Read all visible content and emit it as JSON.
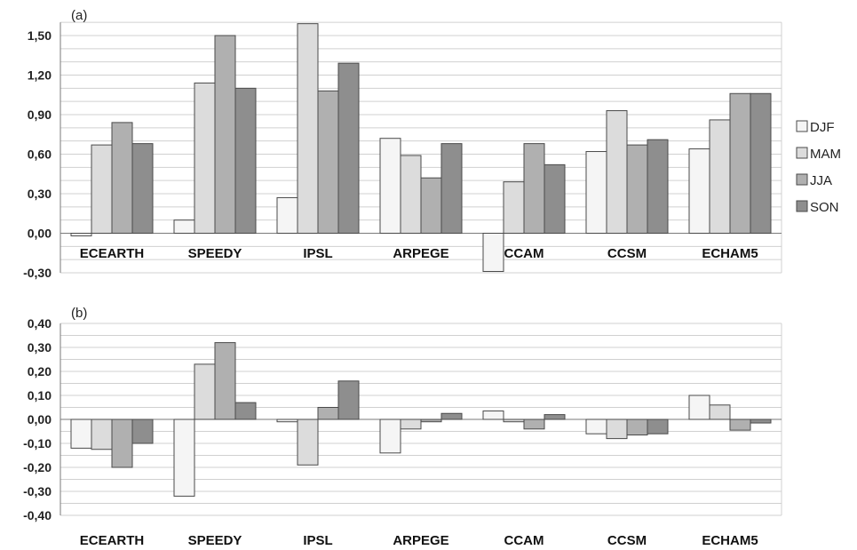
{
  "legend": [
    {
      "name": "DJF",
      "color": "#f5f5f5"
    },
    {
      "name": "MAM",
      "color": "#dcdcdc"
    },
    {
      "name": "JJA",
      "color": "#b0b0b0"
    },
    {
      "name": "SON",
      "color": "#8e8e8e"
    }
  ],
  "chart_data": [
    {
      "type": "bar",
      "panel_label": "(a)",
      "categories": [
        "ECEARTH",
        "SPEEDY",
        "IPSL",
        "ARPEGE",
        "CCAM",
        "CCSM",
        "ECHAM5"
      ],
      "series": [
        {
          "name": "DJF",
          "values": [
            -0.02,
            0.1,
            0.27,
            0.72,
            -0.29,
            0.62,
            0.64
          ]
        },
        {
          "name": "MAM",
          "values": [
            0.67,
            1.14,
            1.59,
            0.59,
            0.39,
            0.93,
            0.86
          ]
        },
        {
          "name": "JJA",
          "values": [
            0.84,
            1.5,
            1.08,
            0.42,
            0.68,
            0.67,
            1.06
          ]
        },
        {
          "name": "SON",
          "values": [
            0.68,
            1.1,
            1.29,
            0.68,
            0.52,
            0.71,
            1.06
          ]
        }
      ],
      "yticks": [
        "-0,30",
        "0,00",
        "0,30",
        "0,60",
        "0,90",
        "1,20",
        "1,50"
      ],
      "ytick_values": [
        -0.3,
        0,
        0.3,
        0.6,
        0.9,
        1.2,
        1.5
      ],
      "ylim": [
        -0.3,
        1.65
      ],
      "grid": true,
      "legend": "right"
    },
    {
      "type": "bar",
      "panel_label": "(b)",
      "categories": [
        "ECEARTH",
        "SPEEDY",
        "IPSL",
        "ARPEGE",
        "CCAM",
        "CCSM",
        "ECHAM5"
      ],
      "series": [
        {
          "name": "DJF",
          "values": [
            -0.12,
            -0.32,
            -0.01,
            -0.14,
            0.035,
            -0.06,
            0.1
          ]
        },
        {
          "name": "MAM",
          "values": [
            -0.125,
            0.23,
            -0.19,
            -0.04,
            -0.01,
            -0.08,
            0.06
          ]
        },
        {
          "name": "JJA",
          "values": [
            -0.2,
            0.32,
            0.05,
            -0.01,
            -0.04,
            -0.065,
            -0.045
          ]
        },
        {
          "name": "SON",
          "values": [
            -0.1,
            0.07,
            0.16,
            0.025,
            0.02,
            -0.06,
            -0.015
          ]
        }
      ],
      "yticks": [
        "-0,40",
        "-0,30",
        "-0,20",
        "-0,10",
        "0,00",
        "0,10",
        "0,20",
        "0,30",
        "0,40"
      ],
      "ytick_values": [
        -0.4,
        -0.3,
        -0.2,
        -0.1,
        0,
        0.1,
        0.2,
        0.3,
        0.4
      ],
      "ylim": [
        -0.4,
        0.4
      ],
      "grid": true,
      "legend": "right"
    }
  ]
}
